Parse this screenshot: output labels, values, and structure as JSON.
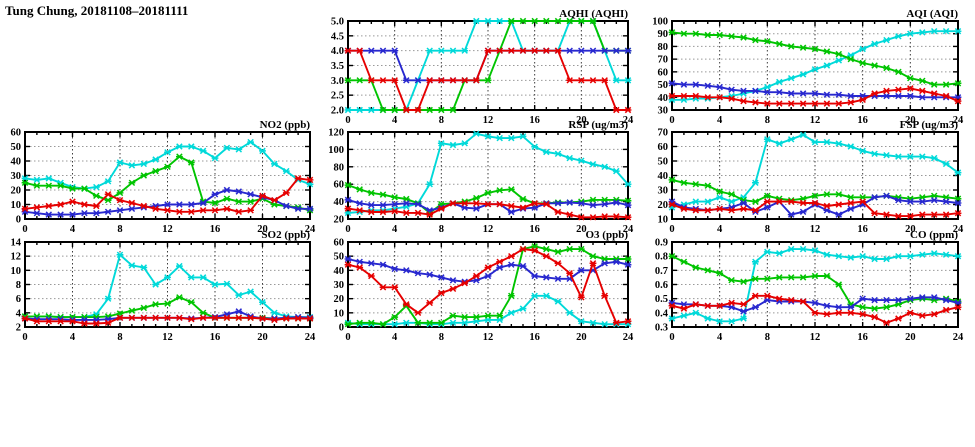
{
  "page_title": "Tung Chung, 20181108–20181111",
  "colors": {
    "red": "#e60000",
    "green": "#00c400",
    "blue": "#2828cf",
    "cyan": "#00d9d9",
    "frame": "#000000",
    "grid_horizontal": "#999999",
    "grid_vertical": "#3c3c3c"
  },
  "x_axis": {
    "range": [
      0,
      24
    ],
    "ticks": [
      0,
      4,
      8,
      12,
      16,
      20,
      24
    ],
    "minor_step": 1
  },
  "chart_data": [
    {
      "id": "aqhi",
      "type": "line",
      "title": "AQHI (AQHI)",
      "ylim": [
        2.0,
        5.0
      ],
      "ytick_labels": [
        "2.0",
        "2.5",
        "3.0",
        "3.5",
        "4.0",
        "4.5",
        "5.0"
      ],
      "series": [
        {
          "color": "cyan",
          "values": [
            2,
            2,
            2,
            2,
            2,
            2,
            3,
            4,
            4,
            4,
            4,
            5,
            5,
            5,
            5,
            4,
            4,
            4,
            4,
            5,
            5,
            5,
            4,
            3,
            3
          ]
        },
        {
          "color": "green",
          "values": [
            3,
            3,
            3,
            2,
            2,
            2,
            2,
            2,
            2,
            2,
            3,
            3,
            3,
            4,
            5,
            5,
            5,
            5,
            5,
            5,
            5,
            5,
            4,
            4,
            4
          ]
        },
        {
          "color": "blue",
          "values": [
            4,
            4,
            4,
            4,
            4,
            3,
            3,
            3,
            3,
            3,
            3,
            3,
            4,
            4,
            4,
            4,
            4,
            4,
            4,
            4,
            4,
            4,
            4,
            4,
            4
          ]
        },
        {
          "color": "red",
          "values": [
            4,
            4,
            3,
            3,
            3,
            2,
            2,
            3,
            3,
            3,
            3,
            3,
            4,
            4,
            4,
            4,
            4,
            4,
            4,
            3,
            3,
            3,
            3,
            2,
            2
          ]
        }
      ]
    },
    {
      "id": "aqi",
      "type": "line",
      "title": "AQI (AQI)",
      "ylim": [
        30,
        100
      ],
      "ytick_labels": [
        "30",
        "40",
        "50",
        "60",
        "70",
        "80",
        "90",
        "100"
      ],
      "series": [
        {
          "color": "cyan",
          "values": [
            38,
            38,
            39,
            39,
            40,
            41,
            43,
            45,
            48,
            52,
            55,
            58,
            62,
            65,
            69,
            73,
            78,
            82,
            85,
            88,
            90,
            91,
            92,
            92,
            92
          ]
        },
        {
          "color": "green",
          "values": [
            91,
            90,
            90,
            89,
            89,
            88,
            87,
            85,
            84,
            82,
            80,
            79,
            78,
            76,
            74,
            70,
            67,
            65,
            63,
            60,
            55,
            53,
            50,
            50,
            51
          ]
        },
        {
          "color": "blue",
          "values": [
            51,
            50,
            50,
            49,
            48,
            46,
            45,
            45,
            44,
            44,
            43,
            43,
            43,
            42,
            42,
            41,
            41,
            41,
            41,
            41,
            41,
            40,
            40,
            40,
            40
          ]
        },
        {
          "color": "red",
          "values": [
            41,
            41,
            41,
            40,
            40,
            39,
            37,
            36,
            35,
            35,
            35,
            35,
            35,
            35,
            35,
            36,
            38,
            43,
            45,
            46,
            47,
            45,
            43,
            41,
            37
          ]
        }
      ]
    },
    {
      "id": "no2",
      "type": "line",
      "title": "NO2 (ppb)",
      "ylim": [
        0,
        60
      ],
      "ytick_labels": [
        "0",
        "10",
        "20",
        "30",
        "40",
        "50",
        "60"
      ],
      "series": [
        {
          "color": "cyan",
          "values": [
            28,
            27,
            28,
            25,
            22,
            21,
            22,
            26,
            39,
            37,
            38,
            41,
            46,
            50,
            50,
            47,
            42,
            49,
            48,
            53,
            47,
            38,
            33,
            27,
            24
          ]
        },
        {
          "color": "green",
          "values": [
            25,
            23,
            23,
            23,
            21,
            21,
            16,
            13,
            18,
            25,
            30,
            33,
            36,
            43,
            39,
            12,
            11,
            14,
            12,
            12,
            14,
            10,
            9,
            8,
            6
          ]
        },
        {
          "color": "blue",
          "values": [
            5,
            4,
            3,
            3,
            3,
            4,
            4,
            5,
            6,
            7,
            8,
            9,
            10,
            10,
            10,
            11,
            17,
            20,
            19,
            17,
            15,
            13,
            9,
            7,
            7
          ]
        },
        {
          "color": "red",
          "values": [
            7,
            8,
            9,
            10,
            12,
            10,
            9,
            17,
            13,
            11,
            9,
            7,
            6,
            5,
            5,
            6,
            6,
            7,
            5,
            6,
            16,
            13,
            18,
            28,
            27
          ]
        }
      ]
    },
    {
      "id": "rsp",
      "type": "line",
      "title": "RSP (ug/m3)",
      "ylim": [
        20,
        120
      ],
      "ytick_labels": [
        "20",
        "40",
        "60",
        "80",
        "100",
        "120"
      ],
      "series": [
        {
          "color": "cyan",
          "values": [
            27,
            28,
            30,
            30,
            32,
            34,
            38,
            60,
            107,
            105,
            107,
            118,
            115,
            113,
            113,
            115,
            103,
            97,
            95,
            90,
            87,
            83,
            80,
            75,
            60
          ]
        },
        {
          "color": "green",
          "values": [
            59,
            54,
            50,
            48,
            45,
            43,
            38,
            27,
            37,
            38,
            40,
            44,
            50,
            53,
            54,
            43,
            38,
            38,
            39,
            39,
            40,
            42,
            42,
            42,
            41
          ]
        },
        {
          "color": "blue",
          "values": [
            42,
            38,
            36,
            36,
            37,
            38,
            37,
            30,
            33,
            38,
            33,
            32,
            37,
            37,
            28,
            32,
            33,
            38,
            38,
            39,
            38,
            36,
            37,
            39,
            36
          ]
        },
        {
          "color": "red",
          "values": [
            32,
            30,
            28,
            28,
            29,
            27,
            27,
            25,
            32,
            38,
            38,
            38,
            37,
            37,
            35,
            33,
            38,
            37,
            28,
            25,
            22,
            22,
            23,
            23,
            22
          ]
        }
      ]
    },
    {
      "id": "fsp",
      "type": "line",
      "title": "FSP (ug/m3)",
      "ylim": [
        10,
        70
      ],
      "ytick_labels": [
        "10",
        "20",
        "30",
        "40",
        "50",
        "60",
        "70"
      ],
      "series": [
        {
          "color": "cyan",
          "values": [
            18,
            20,
            22,
            22,
            25,
            22,
            25,
            35,
            65,
            62,
            65,
            68,
            63,
            63,
            62,
            60,
            57,
            55,
            54,
            53,
            53,
            53,
            52,
            48,
            42
          ]
        },
        {
          "color": "green",
          "values": [
            37,
            35,
            34,
            33,
            29,
            27,
            23,
            22,
            26,
            24,
            23,
            24,
            26,
            27,
            27,
            25,
            25,
            25,
            26,
            25,
            24,
            25,
            26,
            25,
            24
          ]
        },
        {
          "color": "blue",
          "values": [
            22,
            18,
            17,
            16,
            17,
            18,
            21,
            15,
            18,
            22,
            13,
            15,
            20,
            16,
            13,
            17,
            20,
            25,
            26,
            23,
            22,
            22,
            23,
            22,
            21
          ]
        },
        {
          "color": "red",
          "values": [
            20,
            17,
            16,
            16,
            17,
            16,
            17,
            16,
            22,
            22,
            22,
            21,
            21,
            19,
            20,
            21,
            22,
            14,
            13,
            12,
            12,
            13,
            13,
            13,
            14
          ]
        }
      ]
    },
    {
      "id": "so2",
      "type": "line",
      "title": "SO2 (ppb)",
      "ylim": [
        2,
        14
      ],
      "ytick_labels": [
        "2",
        "4",
        "6",
        "8",
        "10",
        "12",
        "14"
      ],
      "series": [
        {
          "color": "cyan",
          "values": [
            3.5,
            3.5,
            3.5,
            3.4,
            3.4,
            3.4,
            3.8,
            6.0,
            12.2,
            10.7,
            10.4,
            8.0,
            9.0,
            10.6,
            9.0,
            9.0,
            8.0,
            8.1,
            6.5,
            7.0,
            5.5,
            4.0,
            3.5,
            3.4,
            3.4
          ]
        },
        {
          "color": "green",
          "values": [
            3.5,
            3.5,
            3.5,
            3.4,
            3.4,
            3.4,
            3.4,
            3.5,
            3.9,
            4.3,
            4.7,
            5.2,
            5.3,
            6.2,
            5.5,
            4.0,
            3.3,
            3.3,
            3.3,
            3.3,
            3.3,
            3.2,
            3.2,
            3.2,
            3.2
          ]
        },
        {
          "color": "blue",
          "values": [
            3.2,
            3.1,
            3.1,
            3.1,
            3.0,
            3.0,
            3.0,
            3.1,
            3.3,
            3.3,
            3.3,
            3.3,
            3.3,
            3.3,
            3.2,
            3.3,
            3.4,
            3.8,
            4.2,
            3.5,
            3.2,
            3.2,
            3.3,
            3.4,
            3.3
          ]
        },
        {
          "color": "red",
          "values": [
            3.2,
            2.8,
            2.8,
            2.8,
            2.8,
            2.5,
            2.5,
            2.6,
            3.3,
            3.3,
            3.3,
            3.3,
            3.3,
            3.3,
            3.1,
            3.3,
            3.3,
            3.3,
            3.3,
            3.3,
            3.2,
            3.0,
            3.2,
            3.2,
            3.2
          ]
        }
      ]
    },
    {
      "id": "o3",
      "type": "line",
      "title": "O3 (ppb)",
      "ylim": [
        0,
        60
      ],
      "ytick_labels": [
        "0",
        "10",
        "20",
        "30",
        "40",
        "50",
        "60"
      ],
      "series": [
        {
          "color": "cyan",
          "values": [
            3,
            2,
            2,
            2,
            2,
            3,
            3,
            2,
            2,
            3,
            3,
            4,
            5,
            5,
            10,
            13,
            22,
            22,
            18,
            10,
            4,
            3,
            2,
            2,
            2
          ]
        },
        {
          "color": "green",
          "values": [
            2,
            3,
            3,
            2,
            7,
            15,
            3,
            3,
            3,
            8,
            7,
            7,
            8,
            8,
            22,
            55,
            57,
            55,
            53,
            55,
            55,
            50,
            48,
            48,
            48
          ]
        },
        {
          "color": "blue",
          "values": [
            48,
            46,
            45,
            44,
            41,
            40,
            38,
            37,
            35,
            33,
            32,
            33,
            36,
            42,
            44,
            43,
            36,
            35,
            34,
            34,
            40,
            40,
            45,
            46,
            44
          ]
        },
        {
          "color": "red",
          "values": [
            44,
            42,
            36,
            28,
            28,
            16,
            10,
            17,
            24,
            27,
            31,
            36,
            42,
            46,
            50,
            55,
            54,
            50,
            45,
            38,
            21,
            45,
            22,
            3,
            4
          ]
        }
      ]
    },
    {
      "id": "co",
      "type": "line",
      "title": "CO (ppm)",
      "ylim": [
        0.3,
        0.9
      ],
      "ytick_labels": [
        "0.3",
        "0.4",
        "0.5",
        "0.6",
        "0.7",
        "0.8",
        "0.9"
      ],
      "series": [
        {
          "color": "cyan",
          "values": [
            0.36,
            0.38,
            0.4,
            0.36,
            0.34,
            0.34,
            0.36,
            0.76,
            0.83,
            0.82,
            0.85,
            0.85,
            0.84,
            0.81,
            0.8,
            0.79,
            0.8,
            0.78,
            0.78,
            0.8,
            0.8,
            0.81,
            0.82,
            0.81,
            0.8
          ]
        },
        {
          "color": "green",
          "values": [
            0.8,
            0.76,
            0.72,
            0.7,
            0.68,
            0.63,
            0.62,
            0.64,
            0.64,
            0.65,
            0.65,
            0.65,
            0.66,
            0.66,
            0.6,
            0.46,
            0.44,
            0.43,
            0.44,
            0.46,
            0.49,
            0.5,
            0.49,
            0.5,
            0.48
          ]
        },
        {
          "color": "blue",
          "values": [
            0.47,
            0.46,
            0.46,
            0.45,
            0.45,
            0.44,
            0.41,
            0.44,
            0.49,
            0.48,
            0.48,
            0.48,
            0.47,
            0.45,
            0.44,
            0.44,
            0.5,
            0.49,
            0.49,
            0.49,
            0.5,
            0.51,
            0.51,
            0.49,
            0.47
          ]
        },
        {
          "color": "red",
          "values": [
            0.45,
            0.43,
            0.46,
            0.45,
            0.45,
            0.47,
            0.46,
            0.52,
            0.52,
            0.5,
            0.49,
            0.48,
            0.4,
            0.39,
            0.4,
            0.4,
            0.39,
            0.37,
            0.33,
            0.36,
            0.4,
            0.38,
            0.39,
            0.42,
            0.44
          ]
        }
      ]
    }
  ]
}
